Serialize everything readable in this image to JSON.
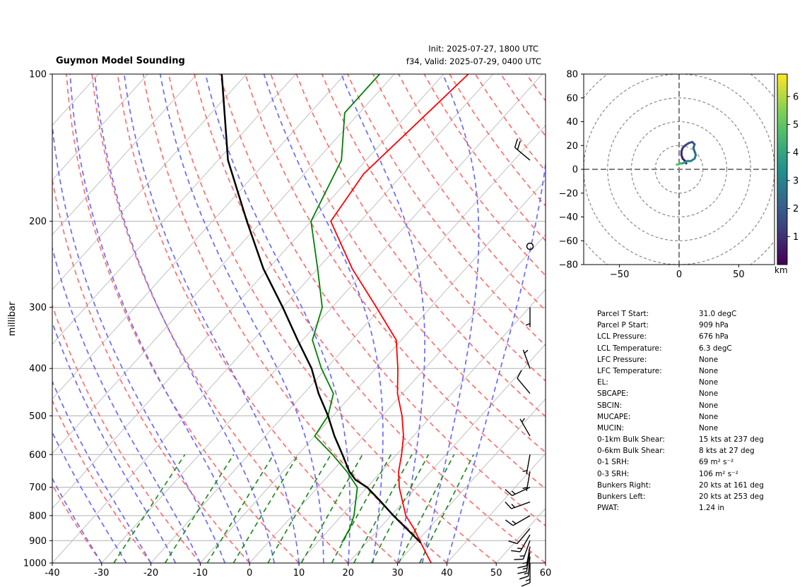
{
  "header": {
    "title": "Guymon Model Sounding",
    "init": "Init: 2025-07-27, 1800 UTC",
    "valid": "f34, Valid: 2025-07-29, 0400 UTC"
  },
  "chart_data": [
    {
      "type": "line",
      "name": "skew-t",
      "ylabel": "millibar",
      "y_scale": "log",
      "xlim": [
        -40,
        60
      ],
      "ylim": [
        1000,
        100
      ],
      "x_ticks": [
        -40,
        -30,
        -20,
        -10,
        0,
        10,
        20,
        30,
        40,
        50,
        60
      ],
      "y_ticks": [
        100,
        200,
        300,
        400,
        500,
        600,
        700,
        800,
        900,
        1000
      ],
      "grid": true,
      "colors": {
        "temperature": "#ff0000",
        "dewpoint": "#008000",
        "parcel": "#000000",
        "dry_adiabat": "#ff6f6f",
        "moist_adiabat": "#6a6aff",
        "mixing_ratio": "#228b22"
      },
      "series": [
        {
          "key": "temperature",
          "points": [
            [
              1000,
              36.8
            ],
            [
              909,
              31.0
            ],
            [
              850,
              27.0
            ],
            [
              800,
              23.0
            ],
            [
              700,
              16.5
            ],
            [
              650,
              13.5
            ],
            [
              600,
              11.0
            ],
            [
              550,
              8.0
            ],
            [
              500,
              4.0
            ],
            [
              450,
              -1.0
            ],
            [
              400,
              -5.5
            ],
            [
              350,
              -11.0
            ],
            [
              300,
              -21.0
            ],
            [
              250,
              -33.0
            ],
            [
              200,
              -46.0
            ],
            [
              160,
              -48.0
            ],
            [
              100,
              -45.0
            ]
          ]
        },
        {
          "key": "dewpoint",
          "points": [
            [
              909,
              15.0
            ],
            [
              850,
              14.0
            ],
            [
              800,
              12.5
            ],
            [
              700,
              8.0
            ],
            [
              650,
              3.0
            ],
            [
              600,
              -3.0
            ],
            [
              550,
              -10.0
            ],
            [
              500,
              -11.0
            ],
            [
              450,
              -14.0
            ],
            [
              400,
              -21.0
            ],
            [
              350,
              -28.0
            ],
            [
              300,
              -32.0
            ],
            [
              250,
              -40.0
            ],
            [
              200,
              -50.0
            ],
            [
              150,
              -55.0
            ],
            [
              120,
              -63.0
            ],
            [
              100,
              -63.0
            ]
          ]
        },
        {
          "key": "parcel",
          "points": [
            [
              909,
              31.0
            ],
            [
              850,
              25.5
            ],
            [
              800,
              20.5
            ],
            [
              750,
              15.5
            ],
            [
              700,
              10.0
            ],
            [
              676,
              6.3
            ],
            [
              650,
              3.5
            ],
            [
              600,
              -1.0
            ],
            [
              550,
              -6.0
            ],
            [
              500,
              -11.0
            ],
            [
              450,
              -17.0
            ],
            [
              400,
              -23.0
            ],
            [
              350,
              -31.0
            ],
            [
              300,
              -40.0
            ],
            [
              250,
              -51.0
            ],
            [
              200,
              -63.0
            ],
            [
              150,
              -78.0
            ],
            [
              100,
              -95.0
            ]
          ]
        }
      ],
      "wind_barbs": [
        {
          "p": 1000,
          "speed_kts": 15,
          "dir_deg": 180
        },
        {
          "p": 970,
          "speed_kts": 15,
          "dir_deg": 185
        },
        {
          "p": 950,
          "speed_kts": 15,
          "dir_deg": 190
        },
        {
          "p": 925,
          "speed_kts": 15,
          "dir_deg": 190
        },
        {
          "p": 900,
          "speed_kts": 15,
          "dir_deg": 200
        },
        {
          "p": 875,
          "speed_kts": 15,
          "dir_deg": 210
        },
        {
          "p": 850,
          "speed_kts": 10,
          "dir_deg": 220
        },
        {
          "p": 800,
          "speed_kts": 15,
          "dir_deg": 240
        },
        {
          "p": 750,
          "speed_kts": 15,
          "dir_deg": 250
        },
        {
          "p": 700,
          "speed_kts": 15,
          "dir_deg": 245
        },
        {
          "p": 650,
          "speed_kts": 5,
          "dir_deg": 190
        },
        {
          "p": 600,
          "speed_kts": 5,
          "dir_deg": 190
        },
        {
          "p": 550,
          "speed_kts": 5,
          "dir_deg": 330
        },
        {
          "p": 450,
          "speed_kts": 10,
          "dir_deg": 320
        },
        {
          "p": 400,
          "speed_kts": 5,
          "dir_deg": 340
        },
        {
          "p": 300,
          "speed_kts": 5,
          "dir_deg": 180
        },
        {
          "p": 225,
          "speed_kts": 0,
          "dir_deg": 0
        },
        {
          "p": 150,
          "speed_kts": 20,
          "dir_deg": 310
        }
      ]
    },
    {
      "type": "scatter",
      "name": "hodograph",
      "xlim": [
        -80,
        80
      ],
      "ylim": [
        -80,
        80
      ],
      "x_ticks": [
        -50,
        0,
        50
      ],
      "y_ticks": [
        -80,
        -60,
        -40,
        -20,
        0,
        20,
        40,
        60,
        80
      ],
      "ring_spacing": 20,
      "colorbar": {
        "label": "km",
        "range": [
          0,
          6.8
        ],
        "ticks": [
          1,
          2,
          3,
          4,
          5,
          6
        ]
      },
      "points": [
        {
          "u": 6,
          "v": 5,
          "h": 0.2
        },
        {
          "u": 5,
          "v": 7,
          "h": 0.4
        },
        {
          "u": 3,
          "v": 9,
          "h": 0.6
        },
        {
          "u": 2,
          "v": 12,
          "h": 0.8
        },
        {
          "u": 2,
          "v": 15,
          "h": 1.0
        },
        {
          "u": 3,
          "v": 18,
          "h": 1.2
        },
        {
          "u": 5,
          "v": 20,
          "h": 1.4
        },
        {
          "u": 8,
          "v": 22,
          "h": 1.6
        },
        {
          "u": 11,
          "v": 23,
          "h": 1.8
        },
        {
          "u": 13,
          "v": 21,
          "h": 2.0
        },
        {
          "u": 12,
          "v": 18,
          "h": 2.2
        },
        {
          "u": 13,
          "v": 15,
          "h": 2.4
        },
        {
          "u": 14,
          "v": 12,
          "h": 2.6
        },
        {
          "u": 13,
          "v": 9,
          "h": 2.8
        },
        {
          "u": 10,
          "v": 7,
          "h": 3.0
        },
        {
          "u": 7,
          "v": 7,
          "h": 3.3
        },
        {
          "u": 5,
          "v": 6,
          "h": 3.6
        },
        {
          "u": 3,
          "v": 5,
          "h": 4.0
        },
        {
          "u": 1,
          "v": 5,
          "h": 4.5
        },
        {
          "u": -1,
          "v": 4,
          "h": 5.0
        },
        {
          "u": -2,
          "v": 4,
          "h": 5.5
        }
      ]
    }
  ],
  "params": [
    {
      "k": "Parcel T Start:",
      "v": "31.0 degC"
    },
    {
      "k": "Parcel P Start:",
      "v": "909 hPa"
    },
    {
      "k": "LCL Pressure:",
      "v": "676 hPa"
    },
    {
      "k": "LCL Temperature:",
      "v": "6.3 degC"
    },
    {
      "k": "LFC Pressure:",
      "v": "None"
    },
    {
      "k": "LFC Temperature:",
      "v": "None"
    },
    {
      "k": "EL:",
      "v": "None"
    },
    {
      "k": "SBCAPE:",
      "v": "None"
    },
    {
      "k": "SBCIN:",
      "v": "None"
    },
    {
      "k": "MUCAPE:",
      "v": "None"
    },
    {
      "k": "MUCIN:",
      "v": "None"
    },
    {
      "k": "0-1km Bulk Shear:",
      "v": "15 kts at 237 deg"
    },
    {
      "k": "0-6km Bulk Shear:",
      "v": "8 kts at 27 deg"
    },
    {
      "k": "0-1 SRH:",
      "v": "69 m² s⁻²"
    },
    {
      "k": "0-3 SRH:",
      "v": "106 m² s⁻²"
    },
    {
      "k": "Bunkers Right:",
      "v": "20 kts at 161 deg"
    },
    {
      "k": "Bunkers Left:",
      "v": "20 kts at 253 deg"
    },
    {
      "k": "PWAT:",
      "v": "1.24 in"
    }
  ]
}
